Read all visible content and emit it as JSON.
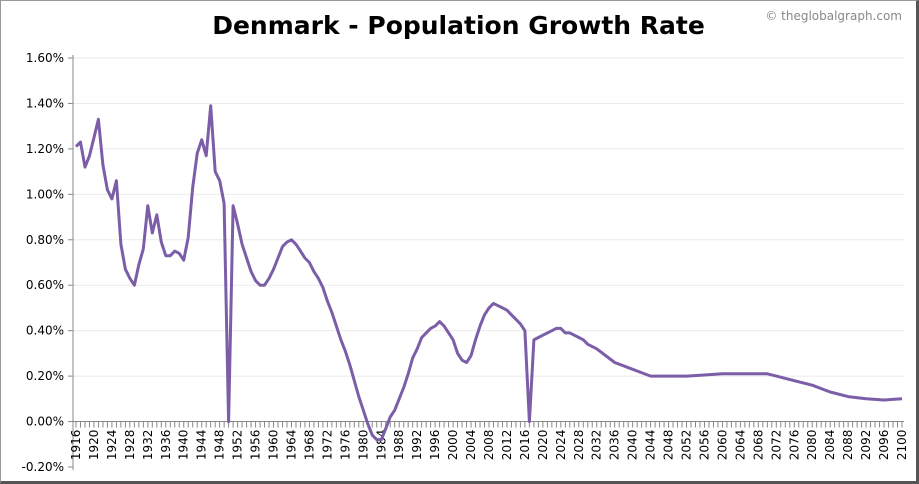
{
  "chart_data": {
    "type": "line",
    "title": "Denmark - Population Growth Rate",
    "watermark": "© theglobalgraph.com",
    "xlabel": "",
    "ylabel": "",
    "ylim": [
      -0.2,
      1.6
    ],
    "xlim": [
      1916,
      2100
    ],
    "grid": true,
    "y_ticks": [
      "-0.20%",
      "0.00%",
      "0.20%",
      "0.40%",
      "0.60%",
      "0.80%",
      "1.00%",
      "1.20%",
      "1.40%",
      "1.60%"
    ],
    "y_tick_values": [
      -0.2,
      0,
      0.2,
      0.4,
      0.6,
      0.8,
      1.0,
      1.2,
      1.4,
      1.6
    ],
    "x_tick_step": 4,
    "line_color": "#7b5ea7",
    "series": [
      {
        "x": [
          1916,
          1917,
          1918,
          1919,
          1920,
          1921,
          1922,
          1923,
          1924,
          1925,
          1926,
          1927,
          1928,
          1929,
          1930,
          1931,
          1932,
          1933,
          1934,
          1935,
          1936,
          1937,
          1938,
          1939,
          1940,
          1941,
          1942,
          1943,
          1944,
          1945,
          1946,
          1947,
          1948,
          1949,
          1950,
          1951,
          1952,
          1953,
          1954,
          1955,
          1956,
          1957,
          1958,
          1959,
          1960,
          1961,
          1962,
          1963,
          1964,
          1965,
          1966,
          1967,
          1968,
          1969,
          1970,
          1971,
          1972,
          1973,
          1974,
          1975,
          1976,
          1977,
          1978,
          1979,
          1980,
          1981,
          1982,
          1983,
          1984,
          1985,
          1986,
          1987,
          1988,
          1989,
          1990,
          1991,
          1992,
          1993,
          1994,
          1995,
          1996,
          1997,
          1998,
          1999,
          2000,
          2001,
          2002,
          2003,
          2004,
          2005,
          2006,
          2007,
          2008,
          2009,
          2010,
          2011,
          2012,
          2013,
          2014,
          2015,
          2016,
          2017,
          2018,
          2019,
          2020,
          2021,
          2022,
          2023,
          2024,
          2025,
          2026,
          2027,
          2028,
          2029,
          2030,
          2031,
          2032,
          2036,
          2040,
          2044,
          2048,
          2052,
          2056,
          2060,
          2064,
          2068,
          2070,
          2072,
          2076,
          2080,
          2084,
          2088,
          2092,
          2096,
          2100
        ],
        "values": [
          1.21,
          1.23,
          1.12,
          1.17,
          1.25,
          1.33,
          1.13,
          1.02,
          0.98,
          1.06,
          0.78,
          0.67,
          0.63,
          0.6,
          0.69,
          0.76,
          0.95,
          0.83,
          0.91,
          0.79,
          0.73,
          0.73,
          0.75,
          0.74,
          0.71,
          0.81,
          1.03,
          1.18,
          1.24,
          1.17,
          1.39,
          1.1,
          1.06,
          0.96,
          0.0,
          0.95,
          0.87,
          0.78,
          0.72,
          0.66,
          0.62,
          0.6,
          0.6,
          0.63,
          0.67,
          0.72,
          0.77,
          0.79,
          0.8,
          0.78,
          0.75,
          0.72,
          0.7,
          0.66,
          0.63,
          0.59,
          0.53,
          0.48,
          0.42,
          0.36,
          0.31,
          0.25,
          0.18,
          0.11,
          0.05,
          -0.01,
          -0.06,
          -0.08,
          -0.08,
          -0.03,
          0.02,
          0.05,
          0.1,
          0.15,
          0.21,
          0.28,
          0.32,
          0.37,
          0.39,
          0.41,
          0.42,
          0.44,
          0.42,
          0.39,
          0.36,
          0.3,
          0.27,
          0.26,
          0.29,
          0.36,
          0.42,
          0.47,
          0.5,
          0.52,
          0.51,
          0.5,
          0.49,
          0.47,
          0.45,
          0.43,
          0.4,
          0.0,
          0.36,
          0.37,
          0.38,
          0.39,
          0.4,
          0.41,
          0.41,
          0.39,
          0.39,
          0.38,
          0.37,
          0.36,
          0.34,
          0.33,
          0.32,
          0.26,
          0.23,
          0.2,
          0.2,
          0.2,
          0.205,
          0.21,
          0.21,
          0.21,
          0.21,
          0.2,
          0.18,
          0.16,
          0.13,
          0.11,
          0.1,
          0.095,
          0.1
        ]
      }
    ]
  }
}
